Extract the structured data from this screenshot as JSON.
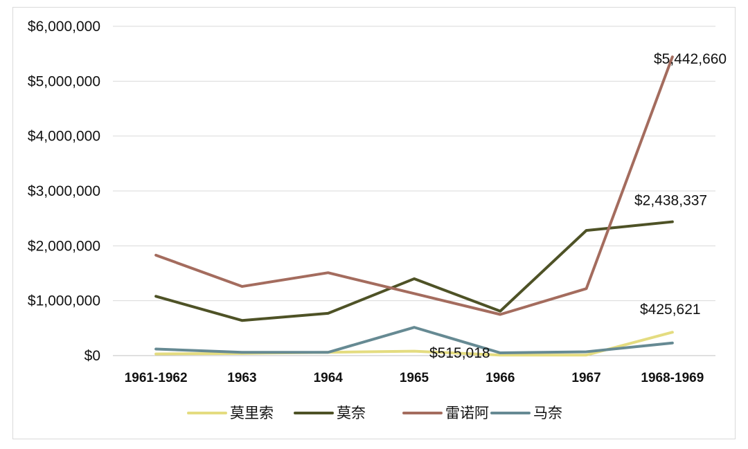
{
  "chart_data": {
    "type": "line",
    "categories": [
      "1961-1962",
      "1963",
      "1964",
      "1965",
      "1966",
      "1967",
      "1968-1969"
    ],
    "ylim": [
      0,
      6000000
    ],
    "yticks": [
      0,
      1000000,
      2000000,
      3000000,
      4000000,
      5000000,
      6000000
    ],
    "ytick_labels": [
      "$0",
      "$1,000,000",
      "$2,000,000",
      "$3,000,000",
      "$4,000,000",
      "$5,000,000",
      "$6,000,000"
    ],
    "grid": true,
    "legend_position": "bottom",
    "series": [
      {
        "name": "莫里索",
        "color": "#e4dc80",
        "values": [
          30000,
          40000,
          60000,
          80000,
          10000,
          10000,
          425621
        ]
      },
      {
        "name": "莫奈",
        "color": "#4e5226",
        "values": [
          1080000,
          640000,
          770000,
          1400000,
          810000,
          2280000,
          2438337
        ]
      },
      {
        "name": "雷诺阿",
        "color": "#a46c5e",
        "values": [
          1830000,
          1260000,
          1510000,
          1130000,
          750000,
          1220000,
          5442660
        ]
      },
      {
        "name": "马奈",
        "color": "#668a93",
        "values": [
          120000,
          60000,
          60000,
          515018,
          50000,
          70000,
          230000
        ]
      }
    ],
    "data_labels": [
      {
        "series": "雷诺阿",
        "category": "1968-1969",
        "text": "$5,442,660"
      },
      {
        "series": "莫奈",
        "category": "1968-1969",
        "text": "$2,438,337"
      },
      {
        "series": "马奈",
        "category": "1965",
        "text": "$515,018"
      },
      {
        "series": "莫里索",
        "category": "1968-1969",
        "text": "$425,621"
      }
    ]
  }
}
